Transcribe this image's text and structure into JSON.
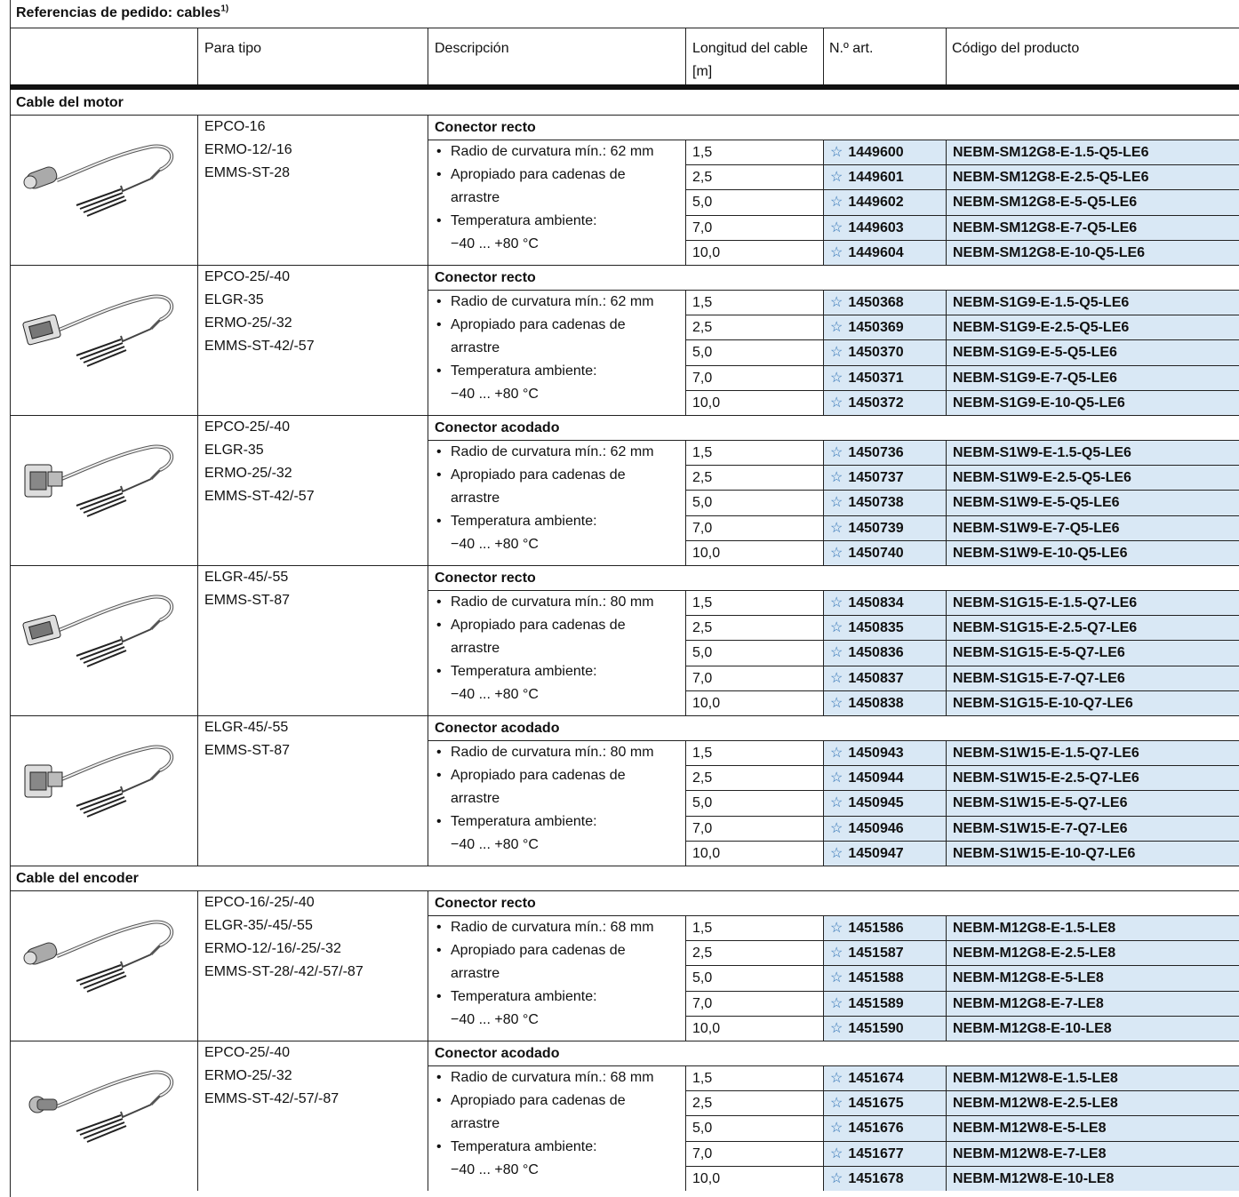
{
  "title": "Referencias de pedido: cables",
  "title_sup": "1)",
  "headers": {
    "for_type": "Para tipo",
    "description": "Descripción",
    "cable_length_l1": "Longitud del cable",
    "cable_length_l2": "[m]",
    "part_no": "N.º art.",
    "product_code": "Código del producto"
  },
  "sections": [
    {
      "label": "Cable del motor",
      "groups": [
        {
          "image": "straight-small-connector-cable",
          "for_type": [
            "EPCO-16",
            "ERMO-12/-16",
            "EMMS-ST-28"
          ],
          "connector": "Conector recto",
          "desc": [
            "Radio de curvatura mín.: 62 mm",
            "Apropiado para cadenas de",
            "arrastre",
            "Temperatura ambiente:",
            "−40 ... +80 °C"
          ],
          "rows": [
            {
              "length": "1,5",
              "part": "1449600",
              "code": "NEBM-SM12G8-E-1.5-Q5-LE6"
            },
            {
              "length": "2,5",
              "part": "1449601",
              "code": "NEBM-SM12G8-E-2.5-Q5-LE6"
            },
            {
              "length": "5,0",
              "part": "1449602",
              "code": "NEBM-SM12G8-E-5-Q5-LE6"
            },
            {
              "length": "7,0",
              "part": "1449603",
              "code": "NEBM-SM12G8-E-7-Q5-LE6"
            },
            {
              "length": "10,0",
              "part": "1449604",
              "code": "NEBM-SM12G8-E-10-Q5-LE6"
            }
          ]
        },
        {
          "image": "straight-rect-connector-cable",
          "for_type": [
            "EPCO-25/-40",
            "ELGR-35",
            "ERMO-25/-32",
            "EMMS-ST-42/-57"
          ],
          "connector": "Conector recto",
          "desc": [
            "Radio de curvatura mín.: 62 mm",
            "Apropiado para cadenas de",
            "arrastre",
            "Temperatura ambiente:",
            "−40 ... +80 °C"
          ],
          "rows": [
            {
              "length": "1,5",
              "part": "1450368",
              "code": "NEBM-S1G9-E-1.5-Q5-LE6"
            },
            {
              "length": "2,5",
              "part": "1450369",
              "code": "NEBM-S1G9-E-2.5-Q5-LE6"
            },
            {
              "length": "5,0",
              "part": "1450370",
              "code": "NEBM-S1G9-E-5-Q5-LE6"
            },
            {
              "length": "7,0",
              "part": "1450371",
              "code": "NEBM-S1G9-E-7-Q5-LE6"
            },
            {
              "length": "10,0",
              "part": "1450372",
              "code": "NEBM-S1G9-E-10-Q5-LE6"
            }
          ]
        },
        {
          "image": "angled-rect-connector-cable",
          "for_type": [
            "EPCO-25/-40",
            "ELGR-35",
            "ERMO-25/-32",
            "EMMS-ST-42/-57"
          ],
          "connector": "Conector acodado",
          "desc": [
            "Radio de curvatura mín.: 62 mm",
            "Apropiado para cadenas de",
            "arrastre",
            "Temperatura ambiente:",
            "−40 ... +80 °C"
          ],
          "rows": [
            {
              "length": "1,5",
              "part": "1450736",
              "code": "NEBM-S1W9-E-1.5-Q5-LE6"
            },
            {
              "length": "2,5",
              "part": "1450737",
              "code": "NEBM-S1W9-E-2.5-Q5-LE6"
            },
            {
              "length": "5,0",
              "part": "1450738",
              "code": "NEBM-S1W9-E-5-Q5-LE6"
            },
            {
              "length": "7,0",
              "part": "1450739",
              "code": "NEBM-S1W9-E-7-Q5-LE6"
            },
            {
              "length": "10,0",
              "part": "1450740",
              "code": "NEBM-S1W9-E-10-Q5-LE6"
            }
          ]
        },
        {
          "image": "straight-rect-connector-cable",
          "for_type": [
            "ELGR-45/-55",
            "EMMS-ST-87"
          ],
          "connector": "Conector recto",
          "desc": [
            "Radio de curvatura mín.: 80 mm",
            "Apropiado para cadenas de",
            "arrastre",
            "Temperatura ambiente:",
            "−40 ... +80 °C"
          ],
          "rows": [
            {
              "length": "1,5",
              "part": "1450834",
              "code": "NEBM-S1G15-E-1.5-Q7-LE6"
            },
            {
              "length": "2,5",
              "part": "1450835",
              "code": "NEBM-S1G15-E-2.5-Q7-LE6"
            },
            {
              "length": "5,0",
              "part": "1450836",
              "code": "NEBM-S1G15-E-5-Q7-LE6"
            },
            {
              "length": "7,0",
              "part": "1450837",
              "code": "NEBM-S1G15-E-7-Q7-LE6"
            },
            {
              "length": "10,0",
              "part": "1450838",
              "code": "NEBM-S1G15-E-10-Q7-LE6"
            }
          ]
        },
        {
          "image": "angled-rect-connector-cable",
          "for_type": [
            "ELGR-45/-55",
            "EMMS-ST-87"
          ],
          "connector": "Conector acodado",
          "desc": [
            "Radio de curvatura mín.: 80 mm",
            "Apropiado para cadenas de",
            "arrastre",
            "Temperatura ambiente:",
            "−40 ... +80 °C"
          ],
          "rows": [
            {
              "length": "1,5",
              "part": "1450943",
              "code": "NEBM-S1W15-E-1.5-Q7-LE6"
            },
            {
              "length": "2,5",
              "part": "1450944",
              "code": "NEBM-S1W15-E-2.5-Q7-LE6"
            },
            {
              "length": "5,0",
              "part": "1450945",
              "code": "NEBM-S1W15-E-5-Q7-LE6"
            },
            {
              "length": "7,0",
              "part": "1450946",
              "code": "NEBM-S1W15-E-7-Q7-LE6"
            },
            {
              "length": "10,0",
              "part": "1450947",
              "code": "NEBM-S1W15-E-10-Q7-LE6"
            }
          ]
        }
      ]
    },
    {
      "label": "Cable del encoder",
      "groups": [
        {
          "image": "straight-round-connector-cable",
          "for_type": [
            "EPCO-16/-25/-40",
            "ELGR-35/-45/-55",
            "ERMO-12/-16/-25/-32",
            "EMMS-ST-28/-42/-57/-87"
          ],
          "connector": "Conector recto",
          "desc": [
            "Radio de curvatura mín.: 68 mm",
            "Apropiado para cadenas de",
            "arrastre",
            "Temperatura ambiente:",
            "−40 ... +80 °C"
          ],
          "rows": [
            {
              "length": "1,5",
              "part": "1451586",
              "code": "NEBM-M12G8-E-1.5-LE8"
            },
            {
              "length": "2,5",
              "part": "1451587",
              "code": "NEBM-M12G8-E-2.5-LE8"
            },
            {
              "length": "5,0",
              "part": "1451588",
              "code": "NEBM-M12G8-E-5-LE8"
            },
            {
              "length": "7,0",
              "part": "1451589",
              "code": "NEBM-M12G8-E-7-LE8"
            },
            {
              "length": "10,0",
              "part": "1451590",
              "code": "NEBM-M12G8-E-10-LE8"
            }
          ]
        },
        {
          "image": "angled-round-connector-cable",
          "for_type": [
            "EPCO-25/-40",
            "ERMO-25/-32",
            "EMMS-ST-42/-57/-87"
          ],
          "connector": "Conector acodado",
          "desc": [
            "Radio de curvatura mín.: 68 mm",
            "Apropiado para cadenas de",
            "arrastre",
            "Temperatura ambiente:",
            "−40 ... +80 °C"
          ],
          "rows": [
            {
              "length": "1,5",
              "part": "1451674",
              "code": "NEBM-M12W8-E-1.5-LE8"
            },
            {
              "length": "2,5",
              "part": "1451675",
              "code": "NEBM-M12W8-E-2.5-LE8"
            },
            {
              "length": "5,0",
              "part": "1451676",
              "code": "NEBM-M12W8-E-5-LE8"
            },
            {
              "length": "7,0",
              "part": "1451677",
              "code": "NEBM-M12W8-E-7-LE8"
            },
            {
              "length": "10,0",
              "part": "1451678",
              "code": "NEBM-M12W8-E-10-LE8"
            }
          ]
        }
      ]
    }
  ],
  "colors": {
    "highlight": "#d9e8f5",
    "star": "#2a6fb3",
    "rule": "#222222"
  }
}
